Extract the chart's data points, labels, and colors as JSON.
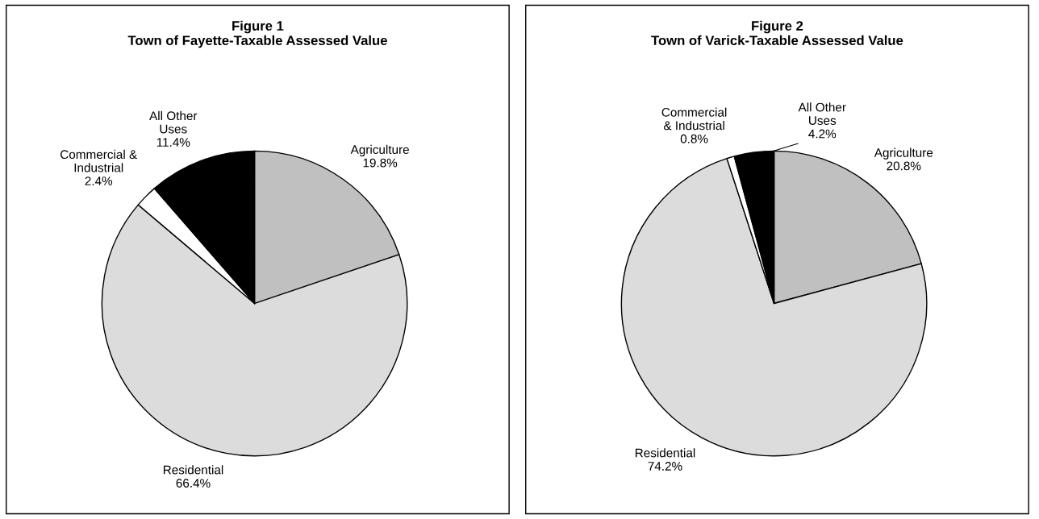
{
  "chart_data": [
    {
      "type": "pie",
      "title": "Figure 1\nTown of Fayette-Taxable Assessed Value",
      "categories": [
        "Agriculture",
        "Residential",
        "Commercial &\nIndustrial",
        "All Other\nUses"
      ],
      "values": [
        19.8,
        66.4,
        2.4,
        11.4
      ],
      "colors": [
        "#c0c0c0",
        "#dcdcdc",
        "#ffffff",
        "#000000"
      ],
      "value_labels": [
        "19.8%",
        "66.4%",
        "2.4%",
        "11.4%"
      ],
      "legend": false
    },
    {
      "type": "pie",
      "title": "Figure 2\nTown of Varick-Taxable Assessed Value",
      "categories": [
        "Agriculture",
        "Residential",
        "Commercial\n& Industrial",
        "All Other\nUses"
      ],
      "values": [
        20.8,
        74.2,
        0.8,
        4.2
      ],
      "colors": [
        "#c0c0c0",
        "#dcdcdc",
        "#ffffff",
        "#000000"
      ],
      "value_labels": [
        "20.8%",
        "74.2%",
        "0.8%",
        "4.2%"
      ],
      "legend": false
    }
  ]
}
